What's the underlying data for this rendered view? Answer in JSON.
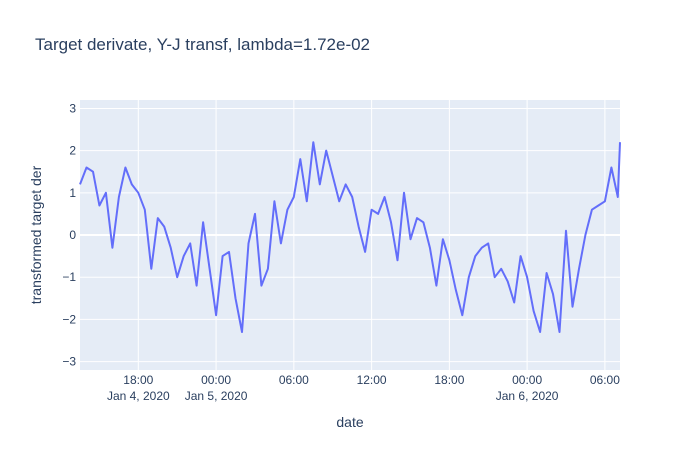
{
  "chart_data": {
    "type": "line",
    "title": "Target derivate, Y-J transf, lambda=1.72e-02",
    "xlabel": "date",
    "ylabel": "transformed target der",
    "x_range": [
      "2020-01-04T13:30",
      "2020-01-06T07:10"
    ],
    "ylim": [
      -3.2,
      3.2
    ],
    "x_ticks": [
      {
        "at": "2020-01-04T18:00",
        "label": "18:00",
        "sublabel": "Jan 4, 2020"
      },
      {
        "at": "2020-01-05T00:00",
        "label": "00:00",
        "sublabel": "Jan 5, 2020"
      },
      {
        "at": "2020-01-05T06:00",
        "label": "06:00",
        "sublabel": ""
      },
      {
        "at": "2020-01-05T12:00",
        "label": "12:00",
        "sublabel": ""
      },
      {
        "at": "2020-01-05T18:00",
        "label": "18:00",
        "sublabel": ""
      },
      {
        "at": "2020-01-06T00:00",
        "label": "00:00",
        "sublabel": "Jan 6, 2020"
      },
      {
        "at": "2020-01-06T06:00",
        "label": "06:00",
        "sublabel": ""
      }
    ],
    "y_ticks": [
      -3,
      -2,
      -1,
      0,
      1,
      2,
      3
    ],
    "grid": true,
    "legend": "none",
    "colors": {
      "line": "#636efa",
      "plot_bg": "#e5ecf6",
      "grid": "#ffffff",
      "text": "#2a3f5f"
    },
    "series": [
      {
        "x": [
          "2020-01-04T13:30",
          "2020-01-04T14:00",
          "2020-01-04T14:30",
          "2020-01-04T15:00",
          "2020-01-04T15:30",
          "2020-01-04T16:00",
          "2020-01-04T16:30",
          "2020-01-04T17:00",
          "2020-01-04T17:30",
          "2020-01-04T18:00",
          "2020-01-04T18:30",
          "2020-01-04T19:00",
          "2020-01-04T19:30",
          "2020-01-04T20:00",
          "2020-01-04T20:30",
          "2020-01-04T21:00",
          "2020-01-04T21:30",
          "2020-01-04T22:00",
          "2020-01-04T22:30",
          "2020-01-04T23:00",
          "2020-01-04T23:30",
          "2020-01-05T00:00",
          "2020-01-05T00:30",
          "2020-01-05T01:00",
          "2020-01-05T01:30",
          "2020-01-05T02:00",
          "2020-01-05T02:30",
          "2020-01-05T03:00",
          "2020-01-05T03:30",
          "2020-01-05T04:00",
          "2020-01-05T04:30",
          "2020-01-05T05:00",
          "2020-01-05T05:30",
          "2020-01-05T06:00",
          "2020-01-05T06:30",
          "2020-01-05T07:00",
          "2020-01-05T07:30",
          "2020-01-05T08:00",
          "2020-01-05T08:30",
          "2020-01-05T09:00",
          "2020-01-05T09:30",
          "2020-01-05T10:00",
          "2020-01-05T10:30",
          "2020-01-05T11:00",
          "2020-01-05T11:30",
          "2020-01-05T12:00",
          "2020-01-05T12:30",
          "2020-01-05T13:00",
          "2020-01-05T13:30",
          "2020-01-05T14:00",
          "2020-01-05T14:30",
          "2020-01-05T15:00",
          "2020-01-05T15:30",
          "2020-01-05T16:00",
          "2020-01-05T16:30",
          "2020-01-05T17:00",
          "2020-01-05T17:30",
          "2020-01-05T18:00",
          "2020-01-05T18:30",
          "2020-01-05T19:00",
          "2020-01-05T19:30",
          "2020-01-05T20:00",
          "2020-01-05T20:30",
          "2020-01-05T21:00",
          "2020-01-05T21:30",
          "2020-01-05T22:00",
          "2020-01-05T22:30",
          "2020-01-05T23:00",
          "2020-01-05T23:30",
          "2020-01-06T00:00",
          "2020-01-06T00:30",
          "2020-01-06T01:00",
          "2020-01-06T01:30",
          "2020-01-06T02:00",
          "2020-01-06T02:30",
          "2020-01-06T03:00",
          "2020-01-06T03:30",
          "2020-01-06T04:00",
          "2020-01-06T04:30",
          "2020-01-06T05:00",
          "2020-01-06T05:30",
          "2020-01-06T06:00",
          "2020-01-06T06:30",
          "2020-01-06T07:00",
          "2020-01-06T07:10"
        ],
        "y": [
          1.2,
          1.6,
          1.5,
          0.7,
          1.0,
          -0.3,
          0.9,
          1.6,
          1.2,
          1.0,
          0.6,
          -0.8,
          0.4,
          0.2,
          -0.3,
          -1.0,
          -0.5,
          -0.2,
          -1.2,
          0.3,
          -0.8,
          -1.9,
          -0.5,
          -0.4,
          -1.5,
          -2.3,
          -0.2,
          0.5,
          -1.2,
          -0.8,
          0.8,
          -0.2,
          0.6,
          0.9,
          1.8,
          0.8,
          2.2,
          1.2,
          2.0,
          1.4,
          0.8,
          1.2,
          0.9,
          0.2,
          -0.4,
          0.6,
          0.5,
          0.9,
          0.3,
          -0.6,
          1.0,
          -0.1,
          0.4,
          0.3,
          -0.3,
          -1.2,
          -0.1,
          -0.6,
          -1.3,
          -1.9,
          -1.0,
          -0.5,
          -0.3,
          -0.2,
          -1.0,
          -0.8,
          -1.1,
          -1.6,
          -0.5,
          -1.0,
          -1.8,
          -2.3,
          -0.9,
          -1.4,
          -2.3,
          0.1,
          -1.7,
          -0.8,
          0.0,
          0.6,
          0.7,
          0.8,
          1.6,
          0.9,
          2.2
        ]
      }
    ]
  }
}
